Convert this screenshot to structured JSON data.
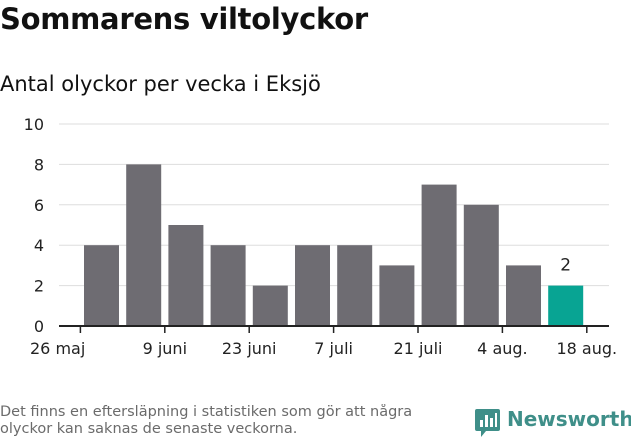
{
  "header": {
    "title": "Sommarens viltolyckor",
    "subtitle": "Antal olyckor per vecka i Eksjö"
  },
  "footer": {
    "note": "Det finns en eftersläpning i statistiken som gör att några olyckor kan saknas de senaste veckorna.",
    "logo_text": "Newsworthy",
    "logo_icon": "bar-chart-speech-bubble-icon"
  },
  "colors": {
    "bar": "#6e6c72",
    "highlight": "#08a493",
    "grid": "#dddddd",
    "axis": "#222222",
    "brand": "#3f8f89"
  },
  "chart_data": {
    "type": "bar",
    "title": "Antal olyckor per vecka i Eksjö",
    "xlabel": "",
    "ylabel": "",
    "ylim": [
      0,
      10
    ],
    "yticks": [
      0,
      2,
      4,
      6,
      8,
      10
    ],
    "grid": true,
    "x_tick_labels": [
      "26 maj",
      "9 juni",
      "23 juni",
      "7 juli",
      "21 juli",
      "4 aug.",
      "18 aug."
    ],
    "values": [
      4,
      8,
      5,
      4,
      2,
      4,
      4,
      3,
      7,
      6,
      3,
      2
    ],
    "highlight_index": 11,
    "annotations": [
      {
        "index": 11,
        "text": "2"
      }
    ]
  }
}
